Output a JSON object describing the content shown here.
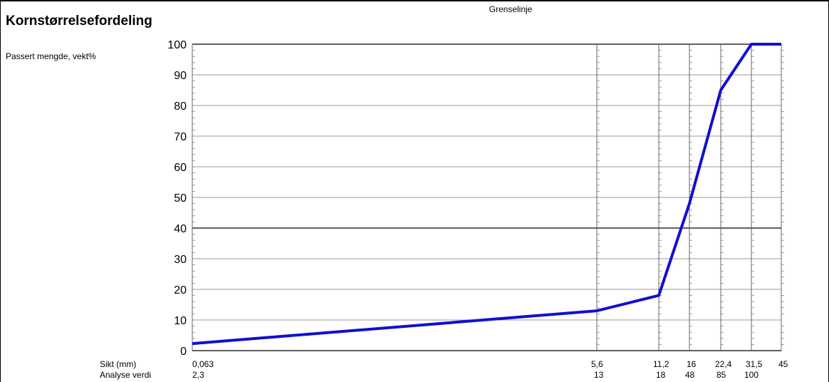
{
  "chart_data": {
    "type": "line",
    "title": "Kornstørrelsefordeling",
    "subtitle": "Grenselinje",
    "ylabel": "Passert mengde, vekt%",
    "ylim": [
      0,
      100
    ],
    "yticks": [
      0,
      10,
      20,
      30,
      40,
      50,
      60,
      70,
      80,
      90,
      100
    ],
    "grid": true,
    "row_labels": {
      "sieve": "Sikt (mm)",
      "analysis": "Analyse verdi"
    },
    "x_labels": [
      "0,063",
      "5,6",
      "11,2",
      "16",
      "22,4",
      "31,5",
      "45"
    ],
    "analysis_values": [
      "2,3",
      "13",
      "18",
      "48",
      "85",
      "100",
      ""
    ],
    "series": [
      {
        "values": [
          2.3,
          13,
          18,
          48,
          85,
          100,
          100
        ],
        "color": "#1010d0"
      }
    ]
  }
}
